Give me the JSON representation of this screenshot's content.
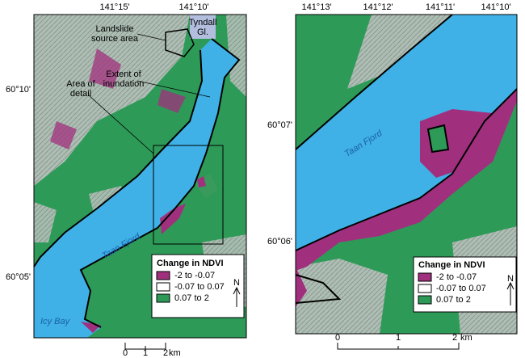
{
  "left_map": {
    "lon_labels": [
      "141°15'",
      "141°10'"
    ],
    "lat_labels": [
      "60°10'",
      "60°05'"
    ],
    "annotations": [
      {
        "lines": [
          "Landslide",
          "source area"
        ]
      },
      {
        "lines": [
          "Tyndall",
          "Gl."
        ]
      },
      {
        "lines": [
          "Extent of",
          "inundation"
        ]
      },
      {
        "lines": [
          "Area of",
          "detail"
        ]
      }
    ],
    "water_labels": [
      "Taan Fjord",
      "Icy Bay"
    ],
    "legend": {
      "title": "Change in NDVI",
      "items": [
        {
          "label": "-2 to -0.07",
          "color": "#a0307e"
        },
        {
          "label": "-0.07 to 0.07",
          "color": "#ffffff"
        },
        {
          "label": "0.07 to 2",
          "color": "#2e9a58"
        }
      ]
    },
    "north": "N",
    "scale": {
      "ticks": [
        "0",
        "1",
        "2"
      ],
      "unit": "km"
    }
  },
  "right_map": {
    "lon_labels": [
      "141°13'",
      "141°12'",
      "141°11'",
      "141°10'"
    ],
    "lat_labels": [
      "60°07'",
      "60°06'"
    ],
    "water_labels": [
      "Taan Fjord"
    ],
    "legend": {
      "title": "Change in NDVI",
      "items": [
        {
          "label": "-2 to -0.07",
          "color": "#a0307e"
        },
        {
          "label": "-0.07 to 0.07",
          "color": "#ffffff"
        },
        {
          "label": "0.07 to 2",
          "color": "#2e9a58"
        }
      ]
    },
    "north": "N",
    "scale": {
      "ticks": [
        "0",
        "1",
        "2"
      ],
      "unit": "km"
    }
  }
}
